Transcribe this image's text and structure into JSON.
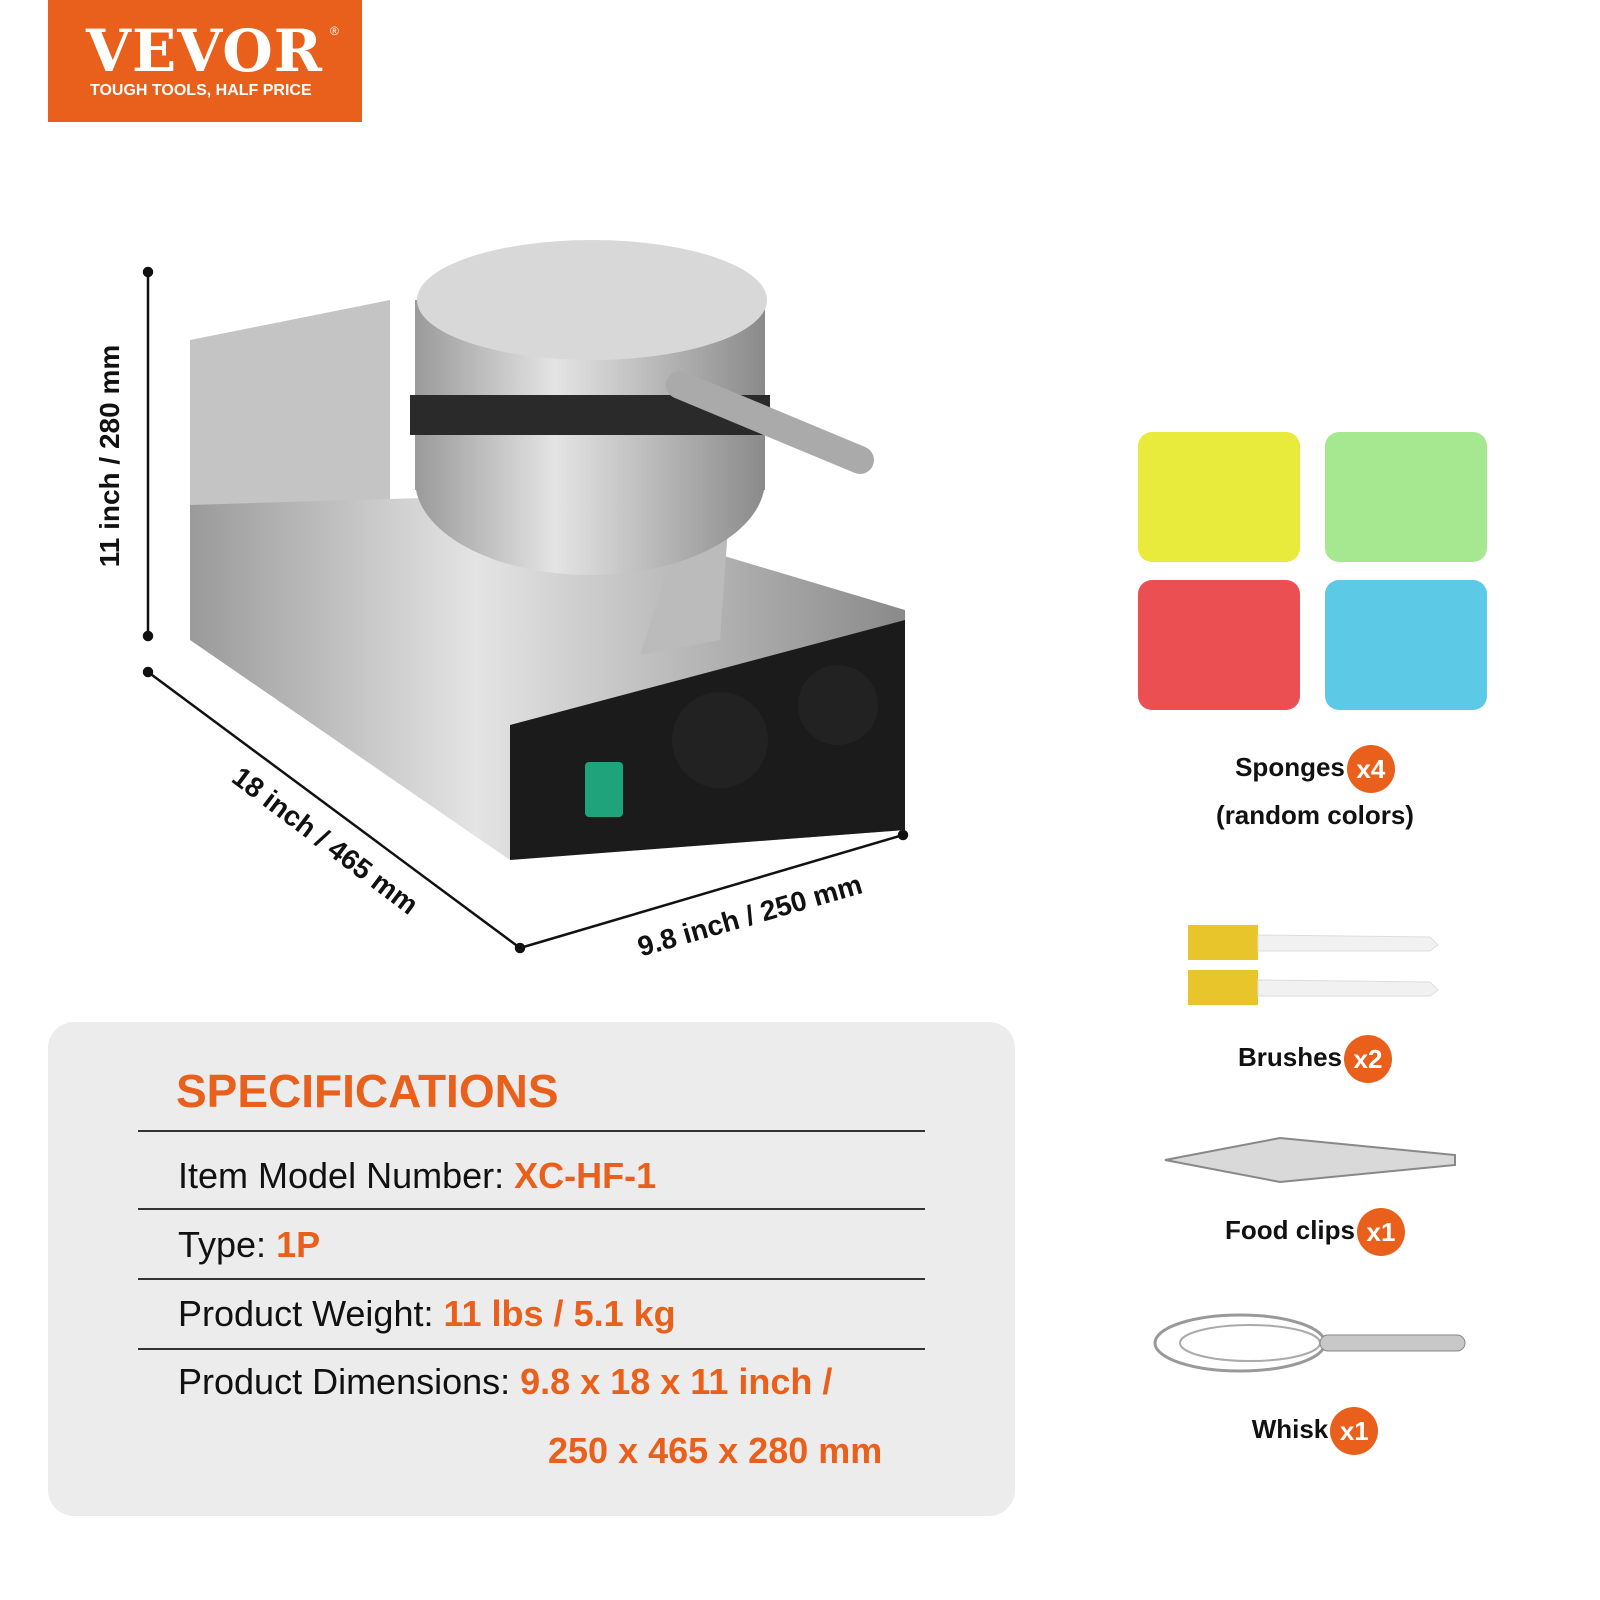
{
  "logo": {
    "brand": "VEVOR",
    "registered": "®",
    "tagline": "TOUGH TOOLS, HALF PRICE",
    "color": "#e8601c"
  },
  "dimensions": {
    "height": "11 inch / 280 mm",
    "depth": "18 inch / 465 mm",
    "width": "9.8 inch / 250 mm"
  },
  "specifications": {
    "title": "SPECIFICATIONS",
    "rows": [
      {
        "label": "Item Model Number:",
        "value": "XC-HF-1"
      },
      {
        "label": "Type:",
        "value": "1P"
      },
      {
        "label": "Product Weight:",
        "value": "11 lbs / 5.1 kg"
      },
      {
        "label": "Product Dimensions:",
        "value": "9.8 x 18 x 11 inch /",
        "value2": "250 x 465 x 280 mm"
      }
    ]
  },
  "accessories": [
    {
      "name": "Sponges",
      "qty": "x4",
      "note": "(random colors)"
    },
    {
      "name": "Brushes",
      "qty": "x2"
    },
    {
      "name": "Food clips",
      "qty": "x1"
    },
    {
      "name": "Whisk",
      "qty": "x1"
    }
  ],
  "sponge_colors": [
    "#e8ea3c",
    "#a6e890",
    "#ec4f52",
    "#5cc9e6"
  ]
}
